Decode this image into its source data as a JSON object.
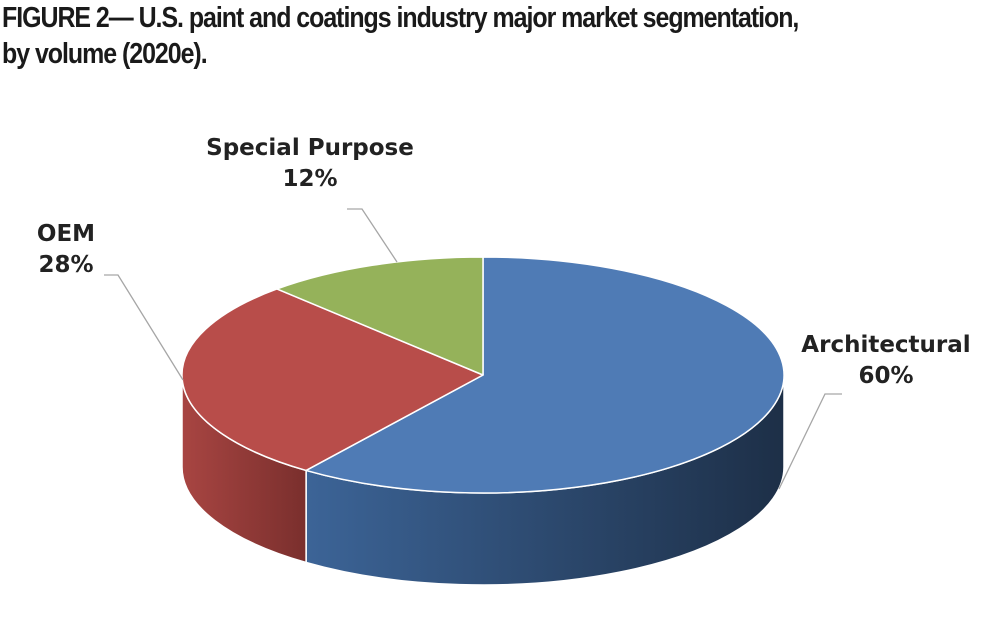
{
  "figure": {
    "title_lines": [
      "FIGURE 2— U.S. paint and coatings industry major market segmentation,",
      "by volume (2020e)."
    ]
  },
  "chart_data": {
    "type": "pie",
    "title": "FIGURE 2— U.S. paint and coatings industry major market segmentation, by volume (2020e).",
    "unit": "%",
    "three_d": true,
    "start": "12 o'clock, clockwise",
    "slices": [
      {
        "label": "Architectural",
        "value": 60,
        "value_label": "60%",
        "color": "#4F7BB5"
      },
      {
        "label": "OEM",
        "value": 28,
        "value_label": "28%",
        "color": "#B84D4A"
      },
      {
        "label": "Special Purpose",
        "value": 12,
        "value_label": "12%",
        "color": "#95B25A"
      }
    ]
  }
}
